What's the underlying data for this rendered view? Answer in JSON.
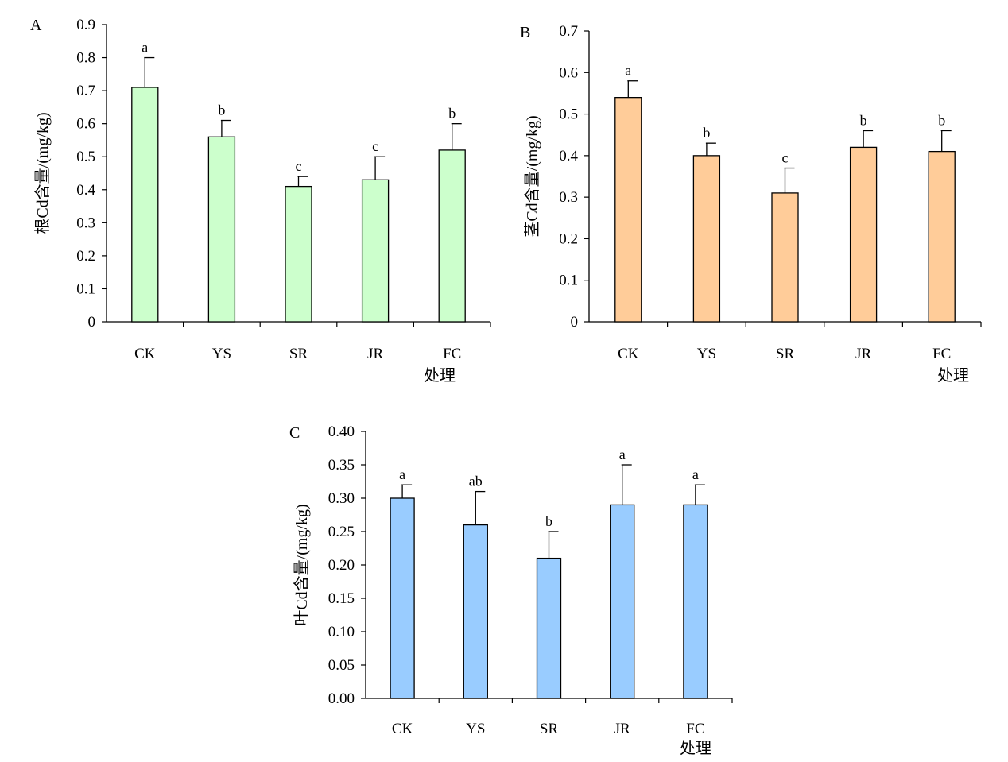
{
  "colors": {
    "panel_a_bar": "#ccffcc",
    "panel_b_bar": "#ffcc99",
    "panel_c_bar": "#99ccff",
    "axis": "#000000"
  },
  "chart_data": [
    {
      "type": "bar",
      "panel": "A",
      "ylabel": "根Cd含量/(mg/kg)",
      "xlabel": "处理",
      "categories": [
        "CK",
        "YS",
        "SR",
        "JR",
        "FC"
      ],
      "values": [
        0.71,
        0.56,
        0.41,
        0.43,
        0.52
      ],
      "error": [
        0.09,
        0.05,
        0.03,
        0.07,
        0.08
      ],
      "significance": [
        "a",
        "b",
        "c",
        "c",
        "b"
      ],
      "ylim": [
        0,
        0.9
      ],
      "yticks": [
        "0",
        "0.1",
        "0.2",
        "0.3",
        "0.4",
        "0.5",
        "0.6",
        "0.7",
        "0.8",
        "0.9"
      ],
      "grid": false
    },
    {
      "type": "bar",
      "panel": "B",
      "ylabel": "茎Cd含量/(mg/kg)",
      "xlabel": "处理",
      "categories": [
        "CK",
        "YS",
        "SR",
        "JR",
        "FC"
      ],
      "values": [
        0.54,
        0.4,
        0.31,
        0.42,
        0.41
      ],
      "error": [
        0.04,
        0.03,
        0.06,
        0.04,
        0.05
      ],
      "significance": [
        "a",
        "b",
        "c",
        "b",
        "b"
      ],
      "ylim": [
        0,
        0.7
      ],
      "yticks": [
        "0",
        "0.1",
        "0.2",
        "0.3",
        "0.4",
        "0.5",
        "0.6",
        "0.7"
      ],
      "grid": false
    },
    {
      "type": "bar",
      "panel": "C",
      "ylabel": "叶Cd含量/(mg/kg)",
      "xlabel": "处理",
      "categories": [
        "CK",
        "YS",
        "SR",
        "JR",
        "FC"
      ],
      "values": [
        0.3,
        0.26,
        0.21,
        0.29,
        0.29
      ],
      "error": [
        0.02,
        0.05,
        0.04,
        0.06,
        0.03
      ],
      "significance": [
        "a",
        "ab",
        "b",
        "a",
        "a"
      ],
      "ylim": [
        0,
        0.4
      ],
      "yticks": [
        "0.00",
        "0.05",
        "0.10",
        "0.15",
        "0.20",
        "0.25",
        "0.30",
        "0.35",
        "0.40"
      ],
      "grid": false
    }
  ]
}
